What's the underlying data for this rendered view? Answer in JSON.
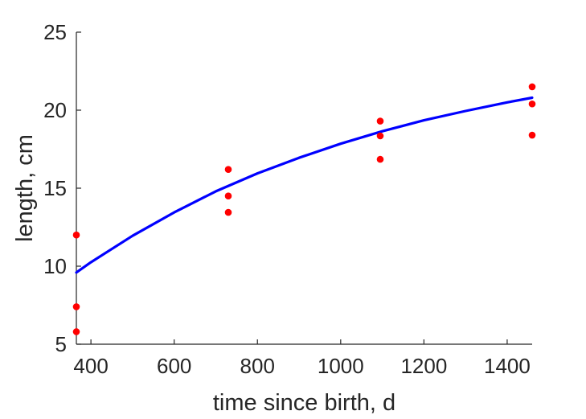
{
  "chart_data": {
    "type": "scatter",
    "title": "",
    "xlabel": "time since birth, d",
    "ylabel": "length, cm",
    "xlim": [
      365,
      1460
    ],
    "ylim": [
      5,
      25
    ],
    "xticks": [
      400,
      600,
      800,
      1000,
      1200,
      1400
    ],
    "yticks": [
      5,
      10,
      15,
      20,
      25
    ],
    "grid": false,
    "box": false,
    "series": [
      {
        "type": "scatter",
        "color": "#ff0000",
        "x": [
          365,
          365,
          365,
          730,
          730,
          730,
          1095,
          1095,
          1095,
          1460,
          1460,
          1460
        ],
        "y": [
          12.0,
          7.4,
          5.8,
          16.2,
          14.5,
          13.45,
          19.3,
          18.35,
          16.85,
          21.5,
          20.4,
          18.4
        ]
      },
      {
        "type": "line",
        "color": "#0000ff",
        "x": [
          365,
          400,
          500,
          600,
          700,
          800,
          900,
          1000,
          1100,
          1200,
          1300,
          1400,
          1460
        ],
        "y": [
          9.6,
          10.25,
          11.95,
          13.45,
          14.8,
          15.95,
          16.95,
          17.85,
          18.65,
          19.35,
          19.95,
          20.5,
          20.8
        ]
      }
    ]
  }
}
